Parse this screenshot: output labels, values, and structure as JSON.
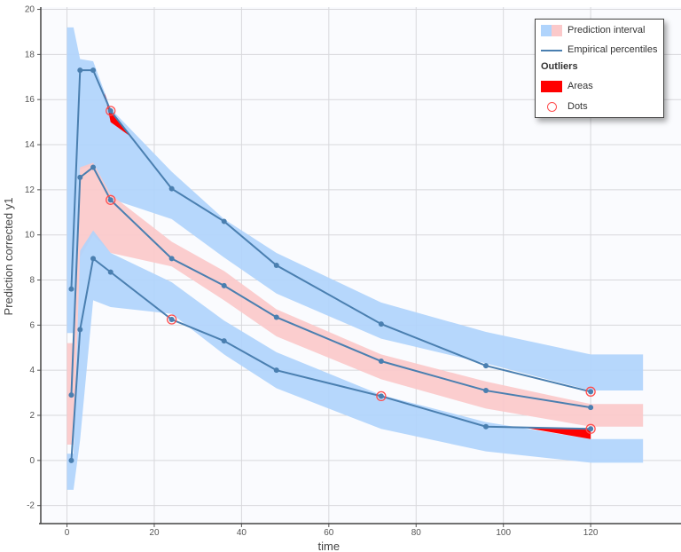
{
  "chart_data": {
    "type": "line",
    "xlabel": "time",
    "ylabel": "Prediction corrected y1",
    "xlim": [
      -6,
      140.7
    ],
    "ylim": [
      -2.8,
      20.1
    ],
    "xticks": [
      0,
      20,
      40,
      60,
      80,
      100,
      120
    ],
    "yticks": [
      -2,
      0,
      2,
      4,
      6,
      8,
      10,
      12,
      14,
      16,
      18,
      20
    ],
    "grid": true,
    "legend_placement": "top-right",
    "colors": {
      "upper_lower_band": "#b0d4fc",
      "median_band": "#fbc9ca",
      "line": "#4a7fb0",
      "outlier": "#ff0000",
      "plot_bg": "#fafbfe"
    },
    "bands": [
      {
        "name": "upper",
        "color": "#b0d4fc",
        "x": [
          0,
          1.5,
          3,
          6,
          10,
          24,
          36,
          48,
          72,
          96,
          120,
          132
        ],
        "low": [
          5.65,
          5.65,
          12.9,
          13.1,
          11.6,
          10.7,
          9.0,
          7.4,
          5.4,
          4.3,
          3.1,
          3.1
        ],
        "high": [
          19.2,
          19.2,
          17.8,
          17.7,
          15.6,
          12.8,
          10.7,
          9.2,
          7.0,
          5.7,
          4.7,
          4.7
        ]
      },
      {
        "name": "median",
        "color": "#fbc9ca",
        "x": [
          0,
          1.5,
          3,
          6,
          10,
          24,
          36,
          48,
          72,
          96,
          120,
          132
        ],
        "low": [
          0.7,
          0.7,
          9.0,
          10.0,
          9.2,
          8.6,
          7.1,
          5.5,
          3.6,
          2.3,
          1.5,
          1.5
        ],
        "high": [
          5.2,
          5.2,
          13.0,
          13.2,
          11.8,
          9.7,
          8.4,
          6.7,
          4.7,
          3.5,
          2.5,
          2.5
        ]
      },
      {
        "name": "lower",
        "color": "#b0d4fc",
        "x": [
          0,
          1.5,
          3,
          6,
          10,
          24,
          36,
          48,
          72,
          96,
          120,
          132
        ],
        "low": [
          -1.3,
          -1.3,
          0.9,
          7.1,
          6.8,
          6.5,
          4.7,
          3.2,
          1.4,
          0.4,
          -0.1,
          -0.1
        ],
        "high": [
          0.3,
          0.3,
          9.3,
          10.2,
          9.2,
          7.9,
          6.2,
          4.8,
          2.9,
          1.7,
          0.95,
          0.95
        ]
      }
    ],
    "series": [
      {
        "x": [
          1,
          3,
          6,
          10,
          24,
          36,
          48,
          72,
          96,
          120
        ],
        "values": [
          7.6,
          17.3,
          17.3,
          15.5,
          12.05,
          10.6,
          8.65,
          6.05,
          4.2,
          3.05
        ]
      },
      {
        "x": [
          1,
          3,
          6,
          10,
          24,
          36,
          48,
          72,
          96,
          120
        ],
        "values": [
          2.9,
          12.55,
          13.0,
          11.55,
          8.95,
          7.75,
          6.35,
          4.4,
          3.1,
          2.35
        ]
      },
      {
        "x": [
          1,
          3,
          6,
          10,
          24,
          36,
          48,
          72,
          96,
          120
        ],
        "values": [
          0.0,
          5.8,
          8.95,
          8.35,
          6.25,
          5.3,
          4.0,
          2.85,
          1.5,
          1.4
        ]
      }
    ],
    "outlier_areas": [
      [
        [
          8.6,
          16.3
        ],
        [
          10,
          15.5
        ],
        [
          15,
          14.3
        ],
        [
          10,
          15.0
        ]
      ],
      [
        [
          105,
          1.45
        ],
        [
          120,
          1.4
        ],
        [
          120,
          0.95
        ]
      ]
    ],
    "outlier_dots": [
      [
        10,
        15.5
      ],
      [
        10,
        11.55
      ],
      [
        24,
        6.25
      ],
      [
        72,
        2.85
      ],
      [
        120,
        3.05
      ],
      [
        120,
        1.4
      ]
    ]
  },
  "legend": {
    "prediction_interval": "Prediction interval",
    "empirical_percentiles": "Empirical percentiles",
    "outliers": "Outliers",
    "areas": "Areas",
    "dots": "Dots"
  }
}
